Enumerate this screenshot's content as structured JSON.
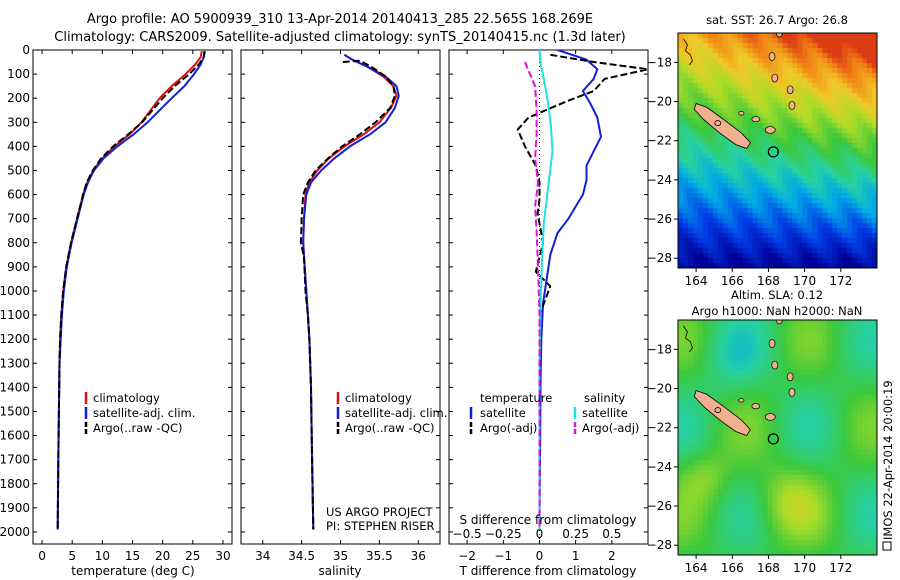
{
  "title": {
    "line1": "Argo profile: AO 5900939_310 13-Apr-2014 20140413_285 22.565S 168.269E",
    "line2": "Climatology: CARS2009. Satellite-adjusted climatology: synTS_20140415.nc (1.3d later)"
  },
  "colors": {
    "climatology": "#e01010",
    "satellite": "#1020d8",
    "argo": "#000000",
    "satellite_s": "#20e0e0",
    "argo_s": "#e010e0"
  },
  "chart_data": [
    {
      "type": "line",
      "name": "temperature-panel",
      "xlabel": "temperature (deg C)",
      "ylim": [
        0,
        2050
      ],
      "y_reversed": true,
      "xlim": [
        -1.5,
        31.5
      ],
      "xticks": [
        0,
        5,
        10,
        15,
        20,
        25,
        30
      ],
      "xtick_labels": [
        "0",
        "5",
        "10",
        "15",
        "20",
        "25",
        "30"
      ],
      "yticks": [
        0,
        100,
        200,
        300,
        400,
        500,
        600,
        700,
        800,
        900,
        1000,
        1100,
        1200,
        1300,
        1400,
        1500,
        1600,
        1700,
        1800,
        1900,
        2000
      ],
      "ytick_labels": [
        "0",
        "100",
        "200",
        "300",
        "400",
        "500",
        "600",
        "700",
        "800",
        "900",
        "1000",
        "1100",
        "1200",
        "1300",
        "1400",
        "1500",
        "1600",
        "1700",
        "1800",
        "1900",
        "2000"
      ],
      "legend": [
        "climatology",
        "satellite-adj. clim.",
        "Argo(..raw -QC)"
      ],
      "series": [
        {
          "name": "climatology",
          "style": "solid",
          "color": "#e01010",
          "x": [
            26.5,
            26.3,
            25.4,
            23.8,
            21.5,
            19.5,
            18.0,
            16.5,
            14.5,
            12.0,
            10.0,
            8.5,
            7.5,
            6.8,
            5.8,
            4.8,
            4.0,
            3.5,
            3.2,
            3.0,
            2.9,
            2.8,
            2.7,
            2.6
          ],
          "y": [
            5,
            30,
            60,
            100,
            150,
            200,
            250,
            300,
            350,
            400,
            450,
            500,
            550,
            600,
            700,
            800,
            900,
            1000,
            1100,
            1200,
            1300,
            1500,
            1700,
            1990
          ]
        },
        {
          "name": "satellite-adj. clim.",
          "style": "solid",
          "color": "#1020d8",
          "x": [
            26.9,
            26.8,
            26.3,
            25.2,
            23.6,
            21.5,
            19.5,
            17.5,
            15.2,
            12.5,
            10.2,
            8.6,
            7.6,
            6.9,
            5.9,
            4.9,
            4.1,
            3.6,
            3.3,
            3.1,
            2.9,
            2.8,
            2.7,
            2.6
          ],
          "y": [
            5,
            30,
            60,
            100,
            150,
            200,
            250,
            300,
            350,
            400,
            450,
            500,
            550,
            600,
            700,
            800,
            900,
            1000,
            1100,
            1200,
            1300,
            1500,
            1700,
            1990
          ]
        },
        {
          "name": "Argo(..raw -QC)",
          "style": "dashed",
          "color": "#000000",
          "x": [
            27.0,
            26.8,
            26.0,
            24.4,
            22.0,
            20.0,
            18.3,
            16.6,
            14.3,
            11.8,
            9.8,
            8.4,
            7.4,
            6.8,
            5.8,
            4.8,
            4.0,
            3.5,
            3.2,
            3.0,
            2.9,
            2.8,
            2.7,
            2.6
          ],
          "y": [
            5,
            30,
            60,
            100,
            150,
            200,
            250,
            300,
            350,
            400,
            450,
            500,
            550,
            600,
            700,
            800,
            900,
            1000,
            1100,
            1200,
            1300,
            1500,
            1700,
            1990
          ]
        }
      ]
    },
    {
      "type": "line",
      "name": "salinity-panel",
      "xlabel": "salinity",
      "ylim": [
        0,
        2050
      ],
      "y_reversed": true,
      "xlim": [
        33.72,
        36.28
      ],
      "xticks": [
        34,
        34.5,
        35,
        35.5,
        36
      ],
      "xtick_labels": [
        "34",
        "34.5",
        "35",
        "35.5",
        "36"
      ],
      "legend": [
        "climatology",
        "satellite-adj. clim.",
        "Argo(..raw -QC)"
      ],
      "annotation": [
        "US ARGO PROJECT",
        "PI: STEPHEN RISER"
      ],
      "series": [
        {
          "name": "climatology",
          "style": "solid",
          "color": "#e01010",
          "x": [
            35.05,
            35.15,
            35.35,
            35.55,
            35.68,
            35.72,
            35.65,
            35.5,
            35.3,
            35.05,
            34.85,
            34.7,
            34.6,
            34.55,
            34.53,
            34.52,
            34.54,
            34.56,
            34.58,
            34.6,
            34.62,
            34.63,
            34.64,
            34.65
          ],
          "y": [
            20,
            40,
            70,
            110,
            150,
            190,
            240,
            300,
            350,
            400,
            450,
            500,
            550,
            600,
            700,
            800,
            900,
            1000,
            1100,
            1200,
            1400,
            1600,
            1800,
            1990
          ]
        },
        {
          "name": "satellite-adj. clim.",
          "style": "solid",
          "color": "#1020d8",
          "x": [
            35.05,
            35.15,
            35.35,
            35.58,
            35.72,
            35.75,
            35.7,
            35.58,
            35.38,
            35.12,
            34.92,
            34.75,
            34.62,
            34.56,
            34.53,
            34.52,
            34.54,
            34.56,
            34.58,
            34.6,
            34.62,
            34.63,
            34.64,
            34.65
          ],
          "y": [
            20,
            40,
            70,
            110,
            150,
            190,
            240,
            300,
            350,
            400,
            450,
            500,
            550,
            600,
            700,
            800,
            900,
            1000,
            1100,
            1200,
            1400,
            1600,
            1800,
            1990
          ]
        },
        {
          "name": "Argo(..raw -QC)",
          "style": "dashed",
          "color": "#000000",
          "x": [
            35.03,
            35.25,
            35.4,
            35.58,
            35.68,
            35.7,
            35.64,
            35.45,
            35.25,
            35.02,
            34.84,
            34.68,
            34.58,
            34.52,
            34.5,
            34.49,
            34.53,
            34.55,
            34.58,
            34.6,
            34.62,
            34.63,
            34.64,
            34.65
          ],
          "y": [
            50,
            45,
            70,
            110,
            150,
            190,
            240,
            300,
            350,
            400,
            450,
            500,
            550,
            600,
            700,
            800,
            860,
            1000,
            1100,
            1200,
            1400,
            1600,
            1800,
            1990
          ]
        }
      ]
    },
    {
      "type": "line",
      "name": "difference-panel",
      "xlabel": "T difference from climatology",
      "xlabel2": "S difference from climatology",
      "ylim": [
        0,
        2050
      ],
      "y_reversed": true,
      "xlim": [
        -2.5,
        3.0
      ],
      "xticks": [
        -2,
        -1,
        0,
        1,
        2
      ],
      "xtick_labels": [
        "−2",
        "−1",
        "0",
        "1",
        "2"
      ],
      "xticks_s": [
        -0.5,
        -0.25,
        0,
        0.25,
        0.5
      ],
      "xtick_labels_s": [
        "−0.5",
        "−0.25",
        "0",
        "0.25",
        "0.5"
      ],
      "legend_headers": [
        "temperature",
        "salinity"
      ],
      "legend": [
        "satellite",
        "Argo(-adj)",
        "satellite",
        "Argo(-adj)"
      ],
      "series": [
        {
          "name": "temperature satellite",
          "style": "solid",
          "color": "#1020d8",
          "x": [
            0.5,
            1.3,
            1.6,
            1.5,
            1.2,
            1.4,
            1.6,
            1.7,
            1.5,
            1.3,
            1.3,
            1.2,
            1.0,
            0.8,
            0.5,
            0.3,
            0.2,
            0.1,
            0.05,
            0.03,
            0.02,
            0.01,
            0.0
          ],
          "y": [
            0,
            40,
            80,
            120,
            170,
            220,
            280,
            360,
            420,
            480,
            540,
            600,
            650,
            700,
            760,
            850,
            950,
            1050,
            1200,
            1400,
            1600,
            1800,
            1990
          ]
        },
        {
          "name": "temperature Argo(-adj)",
          "style": "dashed",
          "color": "#000000",
          "x": [
            0.3,
            1.5,
            3.0,
            1.8,
            1.5,
            0.8,
            -0.3,
            -0.6,
            -0.4,
            -0.1,
            0.0,
            0.0,
            -0.05,
            0.0,
            0.1,
            0.0,
            -0.1,
            0.3,
            0.0,
            0.0,
            0.0
          ],
          "y": [
            20,
            50,
            80,
            120,
            170,
            210,
            280,
            330,
            400,
            480,
            550,
            620,
            680,
            720,
            800,
            860,
            920,
            980,
            1100,
            1400,
            1990
          ]
        },
        {
          "name": "salinity satellite",
          "style": "solid",
          "color": "#20e0e0",
          "x": [
            0.0,
            0.01,
            0.03,
            0.06,
            0.08,
            0.09,
            0.07,
            0.05,
            0.03,
            0.02,
            0.01,
            0.0,
            0.0,
            0.0
          ],
          "y": [
            0,
            60,
            120,
            220,
            320,
            420,
            520,
            620,
            720,
            850,
            1000,
            1300,
            1600,
            1990
          ]
        },
        {
          "name": "salinity Argo(-adj)",
          "style": "dashed",
          "color": "#e010e0",
          "x": [
            -0.1,
            -0.08,
            -0.03,
            -0.02,
            -0.02,
            -0.03,
            -0.01,
            -0.03,
            -0.02,
            -0.01,
            0.0,
            0.0
          ],
          "y": [
            50,
            80,
            150,
            250,
            350,
            450,
            550,
            650,
            750,
            900,
            1100,
            1990
          ]
        }
      ]
    },
    {
      "type": "heatmap",
      "name": "sst-map",
      "title": "sat. SST: 26.7 Argo: 26.8",
      "xlim": [
        163,
        174
      ],
      "ylim": [
        -28.5,
        -16.5
      ],
      "xticks": [
        164,
        166,
        168,
        170,
        172
      ],
      "yticks": [
        -18,
        -20,
        -22,
        -24,
        -26,
        -28
      ],
      "xtick_labels": [
        "164",
        "166",
        "168",
        "170",
        "172"
      ],
      "ytick_labels": [
        "−18",
        "−20",
        "−22",
        "−24",
        "−26",
        "−28"
      ],
      "marker": [
        168.27,
        -22.57
      ]
    },
    {
      "type": "heatmap",
      "name": "sla-map",
      "title_line1": "Altim. SLA: 0.12",
      "title_line2": "Argo h1000: NaN h2000: NaN",
      "xlim": [
        163,
        174
      ],
      "ylim": [
        -28.5,
        -16.5
      ],
      "xticks": [
        164,
        166,
        168,
        170,
        172
      ],
      "yticks": [
        -18,
        -20,
        -22,
        -24,
        -26,
        -28
      ],
      "xtick_labels": [
        "164",
        "166",
        "168",
        "170",
        "172"
      ],
      "ytick_labels": [
        "−18",
        "−20",
        "−22",
        "−24",
        "−26",
        "−28"
      ],
      "marker": [
        168.27,
        -22.57
      ]
    }
  ],
  "credit": "IMOS 22-Apr-2014 20:00:19"
}
